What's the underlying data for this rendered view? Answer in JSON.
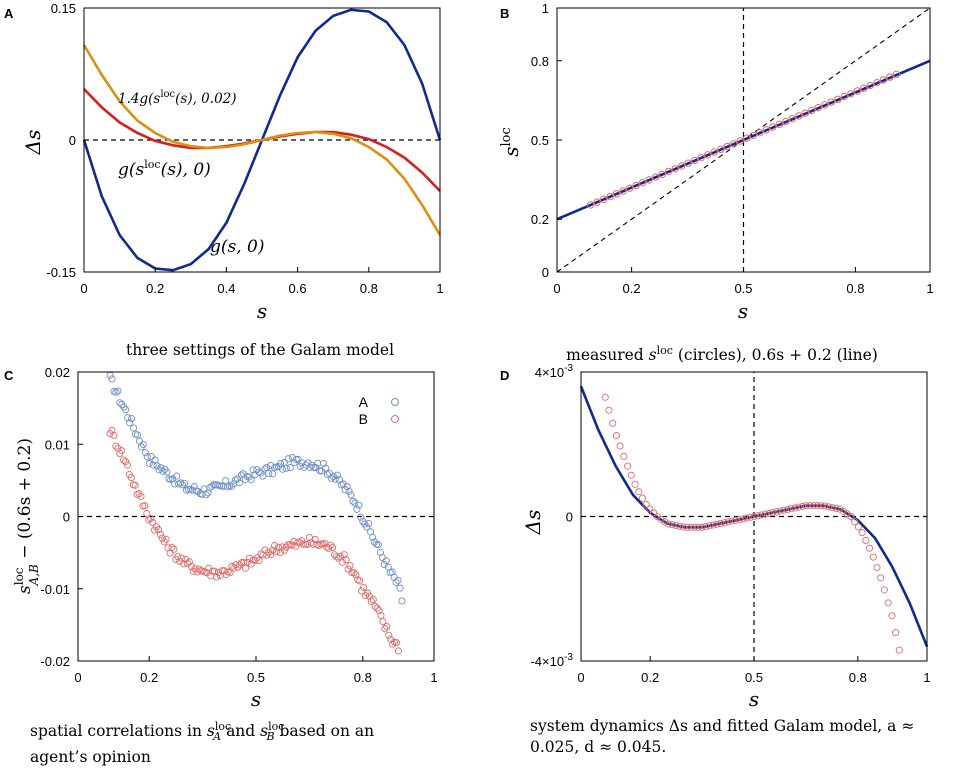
{
  "colors": {
    "navy": "#0f2a8e",
    "red": "#d81e1e",
    "orange": "#dd8f0f",
    "blue_markers": "#6f8fc9",
    "red_markers": "#e06c6c",
    "axis": "#000000"
  },
  "captions": {
    "A": "three settings of the Galam model",
    "B_pre": "measured",
    "B_var": "s",
    "B_sup": "loc",
    "B_post": "(circles), 0.6s + 0.2 (line)",
    "C_line1_pre": "spatial correlations in",
    "C_mid": "and",
    "C_line1_post": "based on an",
    "C_line2": "agent’s opinion",
    "D_line1": "system dynamics Δs and fitted Galam model, a ≈",
    "D_line2": "0.025, d ≈ 0.045."
  },
  "chart_data": [
    {
      "panel": "A",
      "type": "line",
      "xlabel": "s",
      "ylabel": "Δs",
      "xlim": [
        0,
        1
      ],
      "ylim": [
        -0.15,
        0.15
      ],
      "xticks": [
        "0",
        "0.2",
        "0.4",
        "0.6",
        "0.8",
        "1"
      ],
      "yticks": [
        "-0.15",
        "0",
        "0.15"
      ],
      "reference_lines": [
        "y = 0 (dashed)"
      ],
      "series": [
        {
          "name": "g(s, 0)",
          "color": "#0f2a8e",
          "x": [
            0,
            0.05,
            0.1,
            0.15,
            0.2,
            0.25,
            0.3,
            0.35,
            0.4,
            0.45,
            0.5,
            0.55,
            0.6,
            0.65,
            0.7,
            0.75,
            0.8,
            0.85,
            0.9,
            0.95,
            1
          ],
          "y": [
            0,
            -0.064,
            -0.108,
            -0.134,
            -0.146,
            -0.148,
            -0.141,
            -0.124,
            -0.094,
            -0.05,
            0,
            0.05,
            0.094,
            0.124,
            0.141,
            0.148,
            0.146,
            0.134,
            0.108,
            0.064,
            0
          ]
        },
        {
          "name": "g(sloc(s), 0)",
          "color": "#d81e1e",
          "x": [
            0,
            0.05,
            0.1,
            0.15,
            0.2,
            0.25,
            0.3,
            0.35,
            0.4,
            0.45,
            0.5,
            0.55,
            0.6,
            0.65,
            0.7,
            0.75,
            0.8,
            0.85,
            0.9,
            0.95,
            1
          ],
          "y": [
            0.058,
            0.037,
            0.02,
            0.008,
            -0.001,
            -0.006,
            -0.009,
            -0.009,
            -0.007,
            -0.004,
            0,
            0.004,
            0.007,
            0.009,
            0.009,
            0.006,
            0.001,
            -0.008,
            -0.02,
            -0.037,
            -0.058
          ]
        },
        {
          "name": "1.4g(sloc(s), 0.02)",
          "color": "#dd8f0f",
          "x": [
            0,
            0.05,
            0.1,
            0.15,
            0.2,
            0.25,
            0.3,
            0.35,
            0.4,
            0.45,
            0.5,
            0.55,
            0.6,
            0.65,
            0.7,
            0.75,
            0.8,
            0.85,
            0.9,
            0.95,
            1
          ],
          "y": [
            0.108,
            0.074,
            0.044,
            0.022,
            0.008,
            -0.002,
            -0.007,
            -0.009,
            -0.008,
            -0.005,
            0,
            0.005,
            0.008,
            0.009,
            0.007,
            0.002,
            -0.008,
            -0.022,
            -0.044,
            -0.074,
            -0.108
          ]
        }
      ],
      "annotations": [
        {
          "label": "1.4g(s^loc(s), 0.02)",
          "pre": "1.4g(s",
          "sup": "loc",
          "post": "(s), 0.02)"
        },
        {
          "label": "g(s^loc(s), 0)",
          "pre": "g(s",
          "sup": "loc",
          "post": "(s), 0)"
        },
        {
          "label": "g(s, 0)",
          "text": "g(s, 0)"
        }
      ]
    },
    {
      "panel": "B",
      "type": "scatter",
      "xlabel": "s",
      "ylabel": "sloc",
      "ylabel_base": "s",
      "ylabel_sup": "loc",
      "xlim": [
        0,
        1
      ],
      "ylim": [
        0,
        1
      ],
      "xticks": [
        "0",
        "0.2",
        "0.5",
        "0.8",
        "1"
      ],
      "yticks": [
        "0",
        "0.2",
        "0.5",
        "0.8",
        "1"
      ],
      "reference_lines": [
        "x = 0.5 (dashed)",
        "y = x (dashed)"
      ],
      "line": {
        "name": "0.6s + 0.2",
        "slope": 0.6,
        "intercept": 0.2,
        "color": "#0f2a8e"
      },
      "points": {
        "name": "measured sloc",
        "x_start": 0.09,
        "x_end": 0.91,
        "count": 48,
        "slope": 0.603,
        "intercept": 0.2,
        "color": "#e06c6c"
      }
    },
    {
      "panel": "C",
      "type": "scatter",
      "xlabel": "s",
      "ylabel": "sloc_A,B − (0.6s + 0.2)",
      "ylabel_base": "s",
      "ylabel_sup": "loc",
      "ylabel_sub": "A,B",
      "ylabel_rest": " − (0.6s + 0.2)",
      "xlim": [
        0,
        1
      ],
      "ylim": [
        -0.02,
        0.02
      ],
      "xticks": [
        "0",
        "0.2",
        "0.5",
        "0.8",
        "1"
      ],
      "yticks": [
        "-0.02",
        "-0.01",
        "0",
        "0.01",
        "0.02"
      ],
      "legend": [
        {
          "label": "A",
          "color": "#6f8fc9"
        },
        {
          "label": "B",
          "color": "#e06c6c"
        }
      ],
      "series": [
        {
          "name": "A",
          "color": "#6f8fc9",
          "x": [
            0.09,
            0.13,
            0.17,
            0.2,
            0.25,
            0.3,
            0.35,
            0.4,
            0.45,
            0.5,
            0.55,
            0.6,
            0.65,
            0.7,
            0.75,
            0.78,
            0.8,
            0.83,
            0.86,
            0.88,
            0.9,
            0.91
          ],
          "y": [
            0.019,
            0.015,
            0.011,
            0.008,
            0.006,
            0.004,
            0.0035,
            0.004,
            0.005,
            0.006,
            0.0065,
            0.0075,
            0.0075,
            0.0065,
            0.004,
            0.002,
            0.0,
            -0.003,
            -0.006,
            -0.008,
            -0.0095,
            -0.0115
          ]
        },
        {
          "name": "B",
          "color": "#e06c6c",
          "x": [
            0.09,
            0.13,
            0.17,
            0.2,
            0.25,
            0.3,
            0.35,
            0.4,
            0.45,
            0.5,
            0.55,
            0.6,
            0.65,
            0.7,
            0.75,
            0.78,
            0.8,
            0.83,
            0.86,
            0.88,
            0.9
          ],
          "y": [
            0.012,
            0.008,
            0.003,
            0.0,
            -0.004,
            -0.0065,
            -0.0075,
            -0.0078,
            -0.007,
            -0.006,
            -0.0045,
            -0.004,
            -0.0035,
            -0.004,
            -0.006,
            -0.008,
            -0.01,
            -0.012,
            -0.015,
            -0.017,
            -0.018
          ]
        }
      ],
      "reference_lines": [
        "y = 0 (dashed)"
      ]
    },
    {
      "panel": "D",
      "type": "scatter",
      "xlabel": "s",
      "ylabel": "Δs",
      "xlim": [
        0,
        1
      ],
      "ylim": [
        -0.004,
        0.004
      ],
      "xticks": [
        "0",
        "0.2",
        "0.5",
        "0.8",
        "1"
      ],
      "yticks": [
        {
          "mant": "-4×10",
          "exp": "-3",
          "value": -0.004
        },
        {
          "mant": "0",
          "exp": "",
          "value": 0
        },
        {
          "mant": "4×10",
          "exp": "-3",
          "value": 0.004
        }
      ],
      "reference_lines": [
        "y = 0 (dashed)",
        "x = 0.5 (dashed)"
      ],
      "fit": {
        "name": "fitted Galam model",
        "color": "#0f2a8e",
        "x": [
          0,
          0.05,
          0.1,
          0.15,
          0.2,
          0.25,
          0.3,
          0.35,
          0.4,
          0.45,
          0.5,
          0.55,
          0.6,
          0.65,
          0.7,
          0.75,
          0.8,
          0.85,
          0.9,
          0.95,
          1
        ],
        "y": [
          0.0036,
          0.0024,
          0.0014,
          0.0006,
          0.0001,
          -0.0002,
          -0.0003,
          -0.0003,
          -0.0002,
          -0.0001,
          0,
          0.0001,
          0.0002,
          0.0003,
          0.0003,
          0.0002,
          -0.0001,
          -0.0006,
          -0.0014,
          -0.0024,
          -0.0036
        ]
      },
      "points": {
        "name": "system dynamics",
        "color": "#e06c6c",
        "x": [
          0.07,
          0.1,
          0.13,
          0.16,
          0.19,
          0.22,
          0.25,
          0.3,
          0.35,
          0.4,
          0.45,
          0.5,
          0.55,
          0.6,
          0.65,
          0.7,
          0.75,
          0.78,
          0.81,
          0.84,
          0.87,
          0.9,
          0.92
        ],
        "y": [
          0.0033,
          0.0023,
          0.0015,
          0.0008,
          0.0003,
          0.0,
          -0.0002,
          -0.0003,
          -0.0003,
          -0.0002,
          -0.0001,
          0.0,
          0.0001,
          0.0002,
          0.0003,
          0.0003,
          0.0002,
          0.0,
          -0.0004,
          -0.001,
          -0.0018,
          -0.0028,
          -0.0037
        ]
      }
    }
  ]
}
